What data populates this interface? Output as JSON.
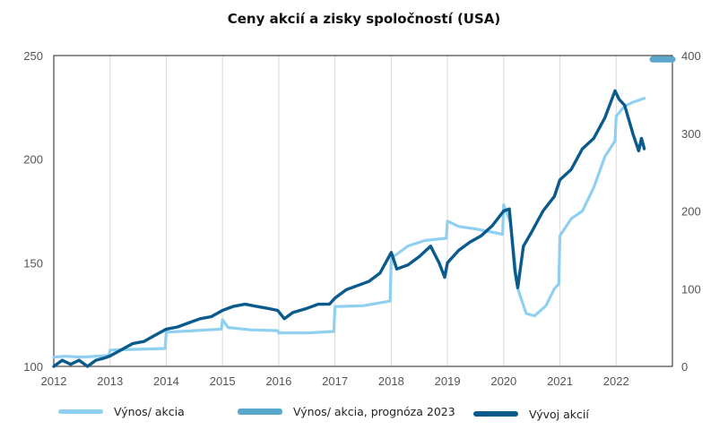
{
  "chart_data": {
    "type": "line",
    "title": "Ceny akcií a zisky spoločností (USA)",
    "x_ticks": [
      "2012",
      "2013",
      "2014",
      "2015",
      "2016",
      "2017",
      "2018",
      "2019",
      "2020",
      "2021",
      "2022"
    ],
    "y_left_ticks": [
      "100",
      "150",
      "200",
      "250"
    ],
    "y_right_ticks": [
      "0",
      "100",
      "200",
      "300",
      "400"
    ],
    "y_left_range": [
      100,
      250
    ],
    "y_right_range": [
      0,
      400
    ],
    "x_range": [
      2012.0,
      2023.0
    ],
    "grid": "vertical",
    "legend_position": "bottom",
    "series": [
      {
        "name": "Výnos/ akcia",
        "axis": "right",
        "color": "#8fd0f0",
        "points": [
          [
            2012.0,
            12
          ],
          [
            2012.2,
            13
          ],
          [
            2012.5,
            12
          ],
          [
            2012.75,
            13
          ],
          [
            2012.98,
            14
          ],
          [
            2013.0,
            21
          ],
          [
            2013.5,
            22
          ],
          [
            2013.98,
            23
          ],
          [
            2014.0,
            44
          ],
          [
            2014.5,
            46
          ],
          [
            2014.98,
            48
          ],
          [
            2015.0,
            60
          ],
          [
            2015.1,
            50
          ],
          [
            2015.5,
            47
          ],
          [
            2015.98,
            46
          ],
          [
            2016.0,
            43
          ],
          [
            2016.5,
            43
          ],
          [
            2016.98,
            45
          ],
          [
            2017.0,
            77
          ],
          [
            2017.5,
            78
          ],
          [
            2017.98,
            84
          ],
          [
            2018.0,
            139
          ],
          [
            2018.3,
            155
          ],
          [
            2018.6,
            162
          ],
          [
            2018.98,
            165
          ],
          [
            2019.0,
            187
          ],
          [
            2019.2,
            180
          ],
          [
            2019.5,
            177
          ],
          [
            2019.98,
            170
          ],
          [
            2020.0,
            208
          ],
          [
            2020.12,
            185
          ],
          [
            2020.25,
            100
          ],
          [
            2020.4,
            68
          ],
          [
            2020.55,
            65
          ],
          [
            2020.75,
            78
          ],
          [
            2020.9,
            100
          ],
          [
            2020.98,
            106
          ],
          [
            2021.0,
            168
          ],
          [
            2021.2,
            190
          ],
          [
            2021.4,
            200
          ],
          [
            2021.6,
            230
          ],
          [
            2021.8,
            270
          ],
          [
            2021.98,
            290
          ],
          [
            2022.0,
            322
          ],
          [
            2022.15,
            335
          ],
          [
            2022.3,
            340
          ],
          [
            2022.5,
            345
          ]
        ]
      },
      {
        "name": "Výnos/ akcia, prognóza 2023",
        "axis": "right",
        "color": "#5aa7cc",
        "points": [
          [
            2022.65,
            395
          ],
          [
            2023.0,
            395
          ]
        ]
      },
      {
        "name": "Vývoj akcií",
        "axis": "left",
        "color": "#0a5a8c",
        "points": [
          [
            2012.0,
            100
          ],
          [
            2012.15,
            103
          ],
          [
            2012.3,
            101
          ],
          [
            2012.45,
            103
          ],
          [
            2012.6,
            100
          ],
          [
            2012.75,
            103
          ],
          [
            2012.9,
            104
          ],
          [
            2013.0,
            105
          ],
          [
            2013.2,
            108
          ],
          [
            2013.4,
            111
          ],
          [
            2013.6,
            112
          ],
          [
            2013.8,
            115
          ],
          [
            2014.0,
            118
          ],
          [
            2014.2,
            119
          ],
          [
            2014.4,
            121
          ],
          [
            2014.6,
            123
          ],
          [
            2014.8,
            124
          ],
          [
            2015.0,
            127
          ],
          [
            2015.2,
            129
          ],
          [
            2015.4,
            130
          ],
          [
            2015.6,
            129
          ],
          [
            2015.8,
            128
          ],
          [
            2015.98,
            127
          ],
          [
            2016.1,
            123
          ],
          [
            2016.25,
            126
          ],
          [
            2016.5,
            128
          ],
          [
            2016.7,
            130
          ],
          [
            2016.9,
            130
          ],
          [
            2017.0,
            133
          ],
          [
            2017.2,
            137
          ],
          [
            2017.4,
            139
          ],
          [
            2017.6,
            141
          ],
          [
            2017.8,
            145
          ],
          [
            2018.0,
            155
          ],
          [
            2018.1,
            147
          ],
          [
            2018.3,
            149
          ],
          [
            2018.5,
            153
          ],
          [
            2018.7,
            158
          ],
          [
            2018.85,
            150
          ],
          [
            2018.95,
            143
          ],
          [
            2019.0,
            150
          ],
          [
            2019.2,
            156
          ],
          [
            2019.4,
            160
          ],
          [
            2019.6,
            163
          ],
          [
            2019.8,
            168
          ],
          [
            2020.0,
            175
          ],
          [
            2020.1,
            176
          ],
          [
            2020.2,
            146
          ],
          [
            2020.25,
            138
          ],
          [
            2020.35,
            158
          ],
          [
            2020.5,
            165
          ],
          [
            2020.7,
            175
          ],
          [
            2020.9,
            182
          ],
          [
            2021.0,
            190
          ],
          [
            2021.2,
            195
          ],
          [
            2021.4,
            205
          ],
          [
            2021.6,
            210
          ],
          [
            2021.8,
            220
          ],
          [
            2021.98,
            233
          ],
          [
            2022.05,
            229
          ],
          [
            2022.15,
            226
          ],
          [
            2022.3,
            212
          ],
          [
            2022.4,
            204
          ],
          [
            2022.45,
            210
          ],
          [
            2022.5,
            205
          ]
        ]
      }
    ]
  },
  "legend": {
    "items": [
      {
        "label": "Výnos/ akcia"
      },
      {
        "label": "Výnos/ akcia, prognóza 2023"
      },
      {
        "label": "Vývoj akcií"
      }
    ]
  }
}
